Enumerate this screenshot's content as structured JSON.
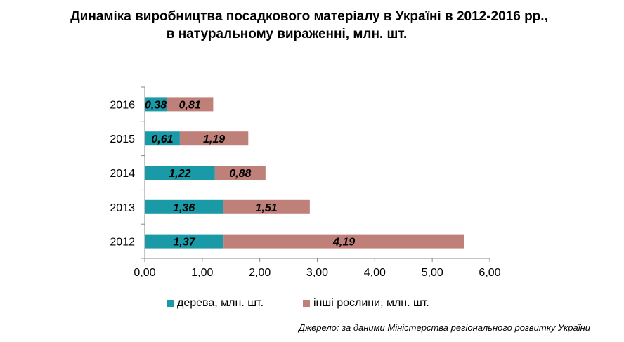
{
  "title_line1": "Динаміка виробництва посадкового матеріалу в Україні в 2012-2016 рр.,",
  "title_line2": "в натуральному вираженні, млн. шт.",
  "source_note": "Джерело: за даними Міністерства регіонального розвитку України",
  "colors": {
    "trees": "#1a9aa6",
    "others": "#c0807a"
  },
  "chart_data": {
    "type": "bar",
    "orientation": "horizontal",
    "stacked": true,
    "categories": [
      "2012",
      "2013",
      "2014",
      "2015",
      "2016"
    ],
    "series": [
      {
        "name": "дерева, млн. шт.",
        "values": [
          1.37,
          1.36,
          1.22,
          0.61,
          0.38
        ],
        "labels": [
          "1,37",
          "1,36",
          "1,22",
          "0,61",
          "0,38"
        ]
      },
      {
        "name": "інші рослини, млн. шт.",
        "values": [
          4.19,
          1.51,
          0.88,
          1.19,
          0.81
        ],
        "labels": [
          "4,19",
          "1,51",
          "0,88",
          "1,19",
          "0,81"
        ]
      }
    ],
    "xlim": [
      0,
      6
    ],
    "xticks": [
      0,
      1,
      2,
      3,
      4,
      5,
      6
    ],
    "xtick_labels": [
      "0,00",
      "1,00",
      "2,00",
      "3,00",
      "4,00",
      "5,00",
      "6,00"
    ],
    "grid": false,
    "legend_position": "bottom"
  }
}
